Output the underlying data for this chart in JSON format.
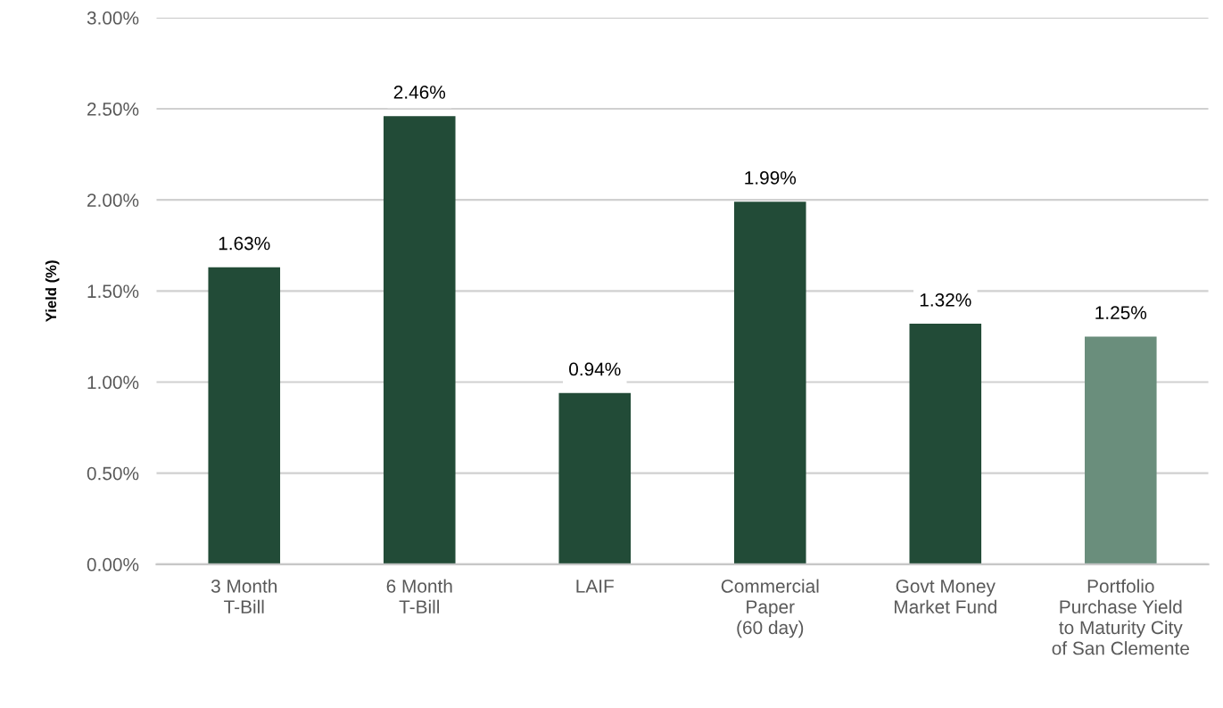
{
  "chart_data": {
    "type": "bar",
    "ylabel": "Yield (%)",
    "categories": [
      "3 Month\nT-Bill",
      "6 Month\nT-Bill",
      "LAIF",
      "Commercial\nPaper\n(60 day)",
      "Govt Money\nMarket Fund",
      "Portfolio\nPurchase Yield\nto Maturity City\nof San Clemente"
    ],
    "values": [
      1.63,
      2.46,
      0.94,
      1.99,
      1.32,
      1.25
    ],
    "colors": [
      "#224b37",
      "#224b37",
      "#224b37",
      "#224b37",
      "#224b37",
      "#6a8e7c"
    ],
    "value_labels": [
      "1.63%",
      "2.46%",
      "0.94%",
      "1.99%",
      "1.32%",
      "1.25%"
    ],
    "ylim": [
      0,
      3
    ],
    "yticks": [
      {
        "value": 0,
        "label": "0.00%"
      },
      {
        "value": 0.5,
        "label": "0.50%"
      },
      {
        "value": 1,
        "label": "1.00%"
      },
      {
        "value": 1.5,
        "label": "1.50%"
      },
      {
        "value": 2,
        "label": "2.00%"
      },
      {
        "value": 2.5,
        "label": "2.50%"
      },
      {
        "value": 3,
        "label": "3.00%"
      }
    ],
    "grid": "y"
  }
}
